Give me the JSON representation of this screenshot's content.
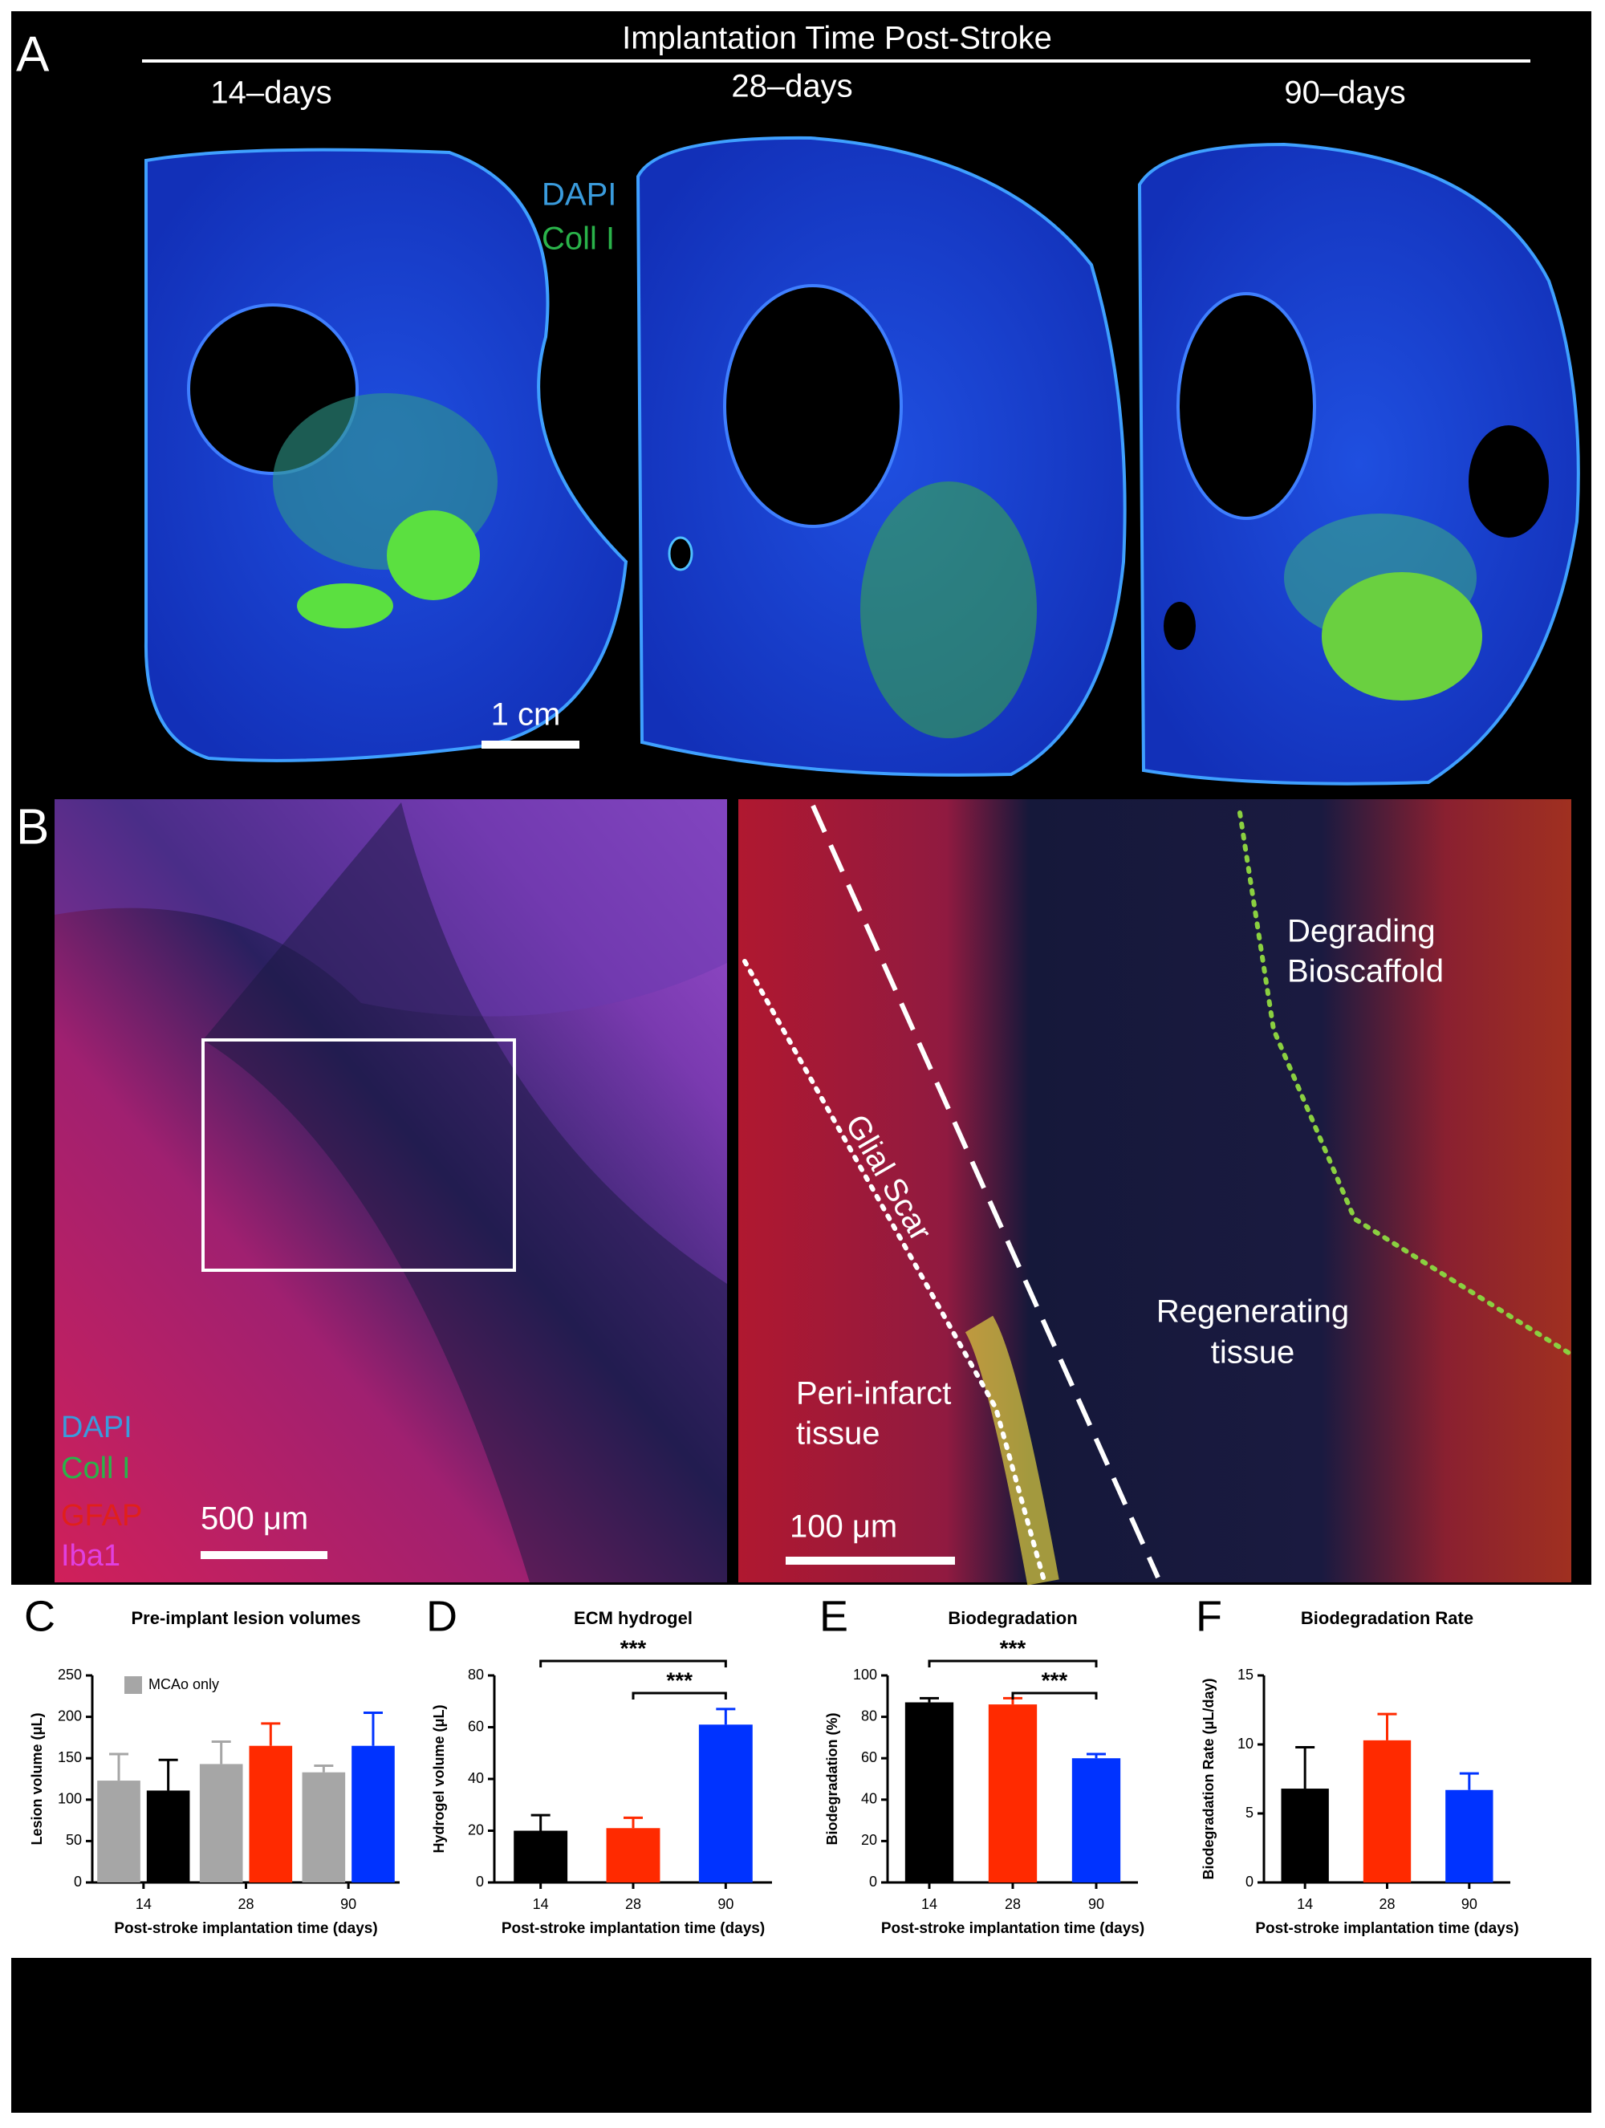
{
  "panel_a": {
    "label": "A",
    "title": "Implantation Time Post-Stroke",
    "timepoints": [
      "14–days",
      "28–days",
      "90–days"
    ],
    "stain_labels": [
      "DAPI",
      "Coll I"
    ],
    "scale_bar": "1 cm"
  },
  "panel_b": {
    "label": "B",
    "stain_labels": [
      "DAPI",
      "Coll I",
      "GFAP",
      "Iba1"
    ],
    "scale_bar_left": "500 μm",
    "scale_bar_right": "100 μm",
    "degrading_bioscaffold": [
      "Degrading",
      "Bioscaffold"
    ],
    "glial_scar": "Glial Scar",
    "regenerating_tissue": [
      "Regenerating",
      "tissue"
    ],
    "peri_infarct_tissue": [
      "Peri-infarct",
      "tissue"
    ]
  },
  "chart_data": [
    {
      "type": "bar",
      "panel": "C",
      "title": "Pre-implant lesion volumes",
      "ylabel": "Lesion volume (μL)",
      "xlabel": "Post-stroke implantation time (days)",
      "categories": [
        "14",
        "28",
        "90"
      ],
      "ylim": [
        0,
        250
      ],
      "yticks": [
        0,
        50,
        100,
        150,
        200,
        250
      ],
      "series": [
        {
          "name": "MCAo only",
          "color": "#a6a6a6",
          "values": [
            123,
            143,
            133
          ],
          "errors": [
            32,
            27,
            8
          ]
        },
        {
          "colors": [
            "#000000",
            "#ff2a00",
            "#0033ff"
          ],
          "values": [
            111,
            165,
            165
          ],
          "errors": [
            37,
            27,
            40
          ]
        }
      ]
    },
    {
      "type": "bar",
      "panel": "D",
      "title": "ECM hydrogel",
      "ylabel": "Hydrogel volume (μL)",
      "xlabel": "Post-stroke implantation time (days)",
      "categories": [
        "14",
        "28",
        "90"
      ],
      "ylim": [
        0,
        80
      ],
      "yticks": [
        0,
        20,
        40,
        60,
        80
      ],
      "series": [
        {
          "colors": [
            "#000000",
            "#ff2a00",
            "#0033ff"
          ],
          "values": [
            20,
            21,
            61
          ],
          "errors": [
            6,
            4,
            6
          ]
        }
      ],
      "significance": [
        {
          "between": [
            "14",
            "90"
          ],
          "label": "***"
        },
        {
          "between": [
            "28",
            "90"
          ],
          "label": "***"
        }
      ]
    },
    {
      "type": "bar",
      "panel": "E",
      "title": "Biodegradation",
      "ylabel": "Biodegradation (%)",
      "xlabel": "Post-stroke implantation time (days)",
      "categories": [
        "14",
        "28",
        "90"
      ],
      "ylim": [
        0,
        100
      ],
      "yticks": [
        0,
        20,
        40,
        60,
        80,
        100
      ],
      "series": [
        {
          "colors": [
            "#000000",
            "#ff2a00",
            "#0033ff"
          ],
          "values": [
            87,
            86,
            60
          ],
          "errors": [
            2,
            3,
            2
          ]
        }
      ],
      "significance": [
        {
          "between": [
            "14",
            "90"
          ],
          "label": "***"
        },
        {
          "between": [
            "28",
            "90"
          ],
          "label": "***"
        }
      ]
    },
    {
      "type": "bar",
      "panel": "F",
      "title": "Biodegradation Rate",
      "ylabel": "Biodegradation Rate (μL/day)",
      "xlabel": "Post-stroke implantation time (days)",
      "categories": [
        "14",
        "28",
        "90"
      ],
      "ylim": [
        0,
        15
      ],
      "yticks": [
        0,
        5,
        10,
        15
      ],
      "series": [
        {
          "colors": [
            "#000000",
            "#ff2a00",
            "#0033ff"
          ],
          "values": [
            6.8,
            10.3,
            6.7
          ],
          "errors": [
            3,
            1.9,
            1.2
          ]
        }
      ]
    }
  ]
}
